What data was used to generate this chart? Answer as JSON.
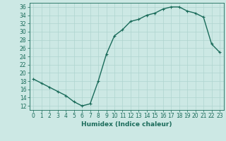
{
  "x": [
    0,
    1,
    2,
    3,
    4,
    5,
    6,
    7,
    8,
    9,
    10,
    11,
    12,
    13,
    14,
    15,
    16,
    17,
    18,
    19,
    20,
    21,
    22,
    23
  ],
  "y": [
    18.5,
    17.5,
    16.5,
    15.5,
    14.5,
    13.0,
    12.0,
    12.5,
    18.0,
    24.5,
    29.0,
    30.5,
    32.5,
    33.0,
    34.0,
    34.5,
    35.5,
    36.0,
    36.0,
    35.0,
    34.5,
    33.5,
    27.0,
    25.0
  ],
  "line_color": "#1a6b5a",
  "marker": "+",
  "bg_color": "#cce8e4",
  "grid_color": "#afd4cf",
  "xlabel": "Humidex (Indice chaleur)",
  "ylim": [
    11,
    37
  ],
  "xlim": [
    -0.5,
    23.5
  ],
  "yticks": [
    12,
    14,
    16,
    18,
    20,
    22,
    24,
    26,
    28,
    30,
    32,
    34,
    36
  ],
  "xticks": [
    0,
    1,
    2,
    3,
    4,
    5,
    6,
    7,
    8,
    9,
    10,
    11,
    12,
    13,
    14,
    15,
    16,
    17,
    18,
    19,
    20,
    21,
    22,
    23
  ],
  "tick_label_fontsize": 5.5,
  "xlabel_fontsize": 6.5,
  "line_width": 1.0,
  "marker_size": 3.5
}
